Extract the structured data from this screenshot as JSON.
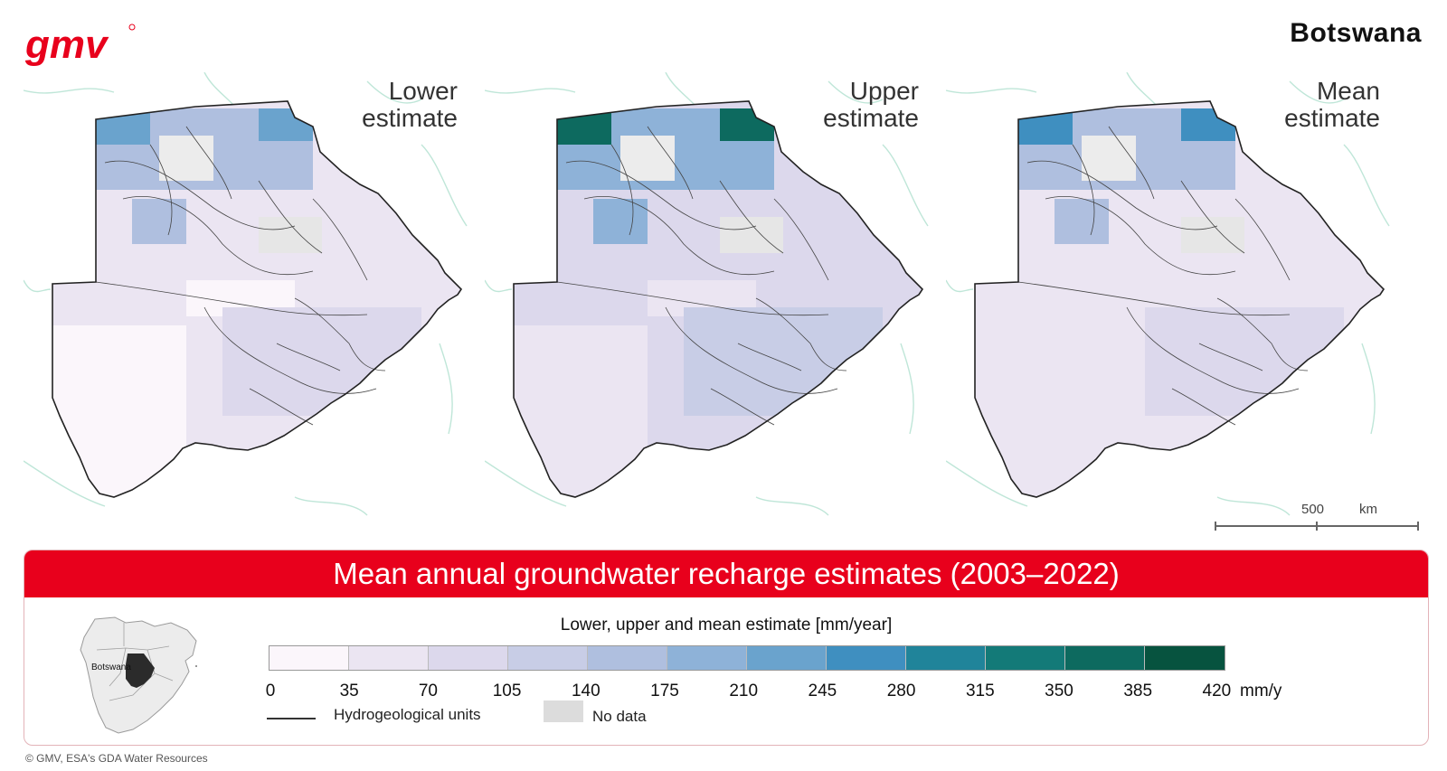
{
  "brand": {
    "logo_text": "gmv"
  },
  "country_title": "Botswana",
  "panels": [
    {
      "label_line1": "Lower",
      "label_line2": "estimate"
    },
    {
      "label_line1": "Upper",
      "label_line2": "estimate"
    },
    {
      "label_line1": "Mean",
      "label_line2": "estimate"
    }
  ],
  "scale_bar": {
    "value": "500",
    "unit": "km"
  },
  "legend": {
    "title": "Mean annual groundwater recharge estimates (2003–2022)",
    "subtitle": "Lower, upper and mean estimate [mm/year]",
    "ticks": [
      "0",
      "35",
      "70",
      "105",
      "140",
      "175",
      "210",
      "245",
      "280",
      "315",
      "350",
      "385",
      "420"
    ],
    "unit": "mm/y",
    "colors": [
      "#fbf6fb",
      "#ebe5f2",
      "#dcd8ec",
      "#c8cde6",
      "#afbfdf",
      "#8eb2d8",
      "#6aa3cd",
      "#3f8fc0",
      "#20849a",
      "#137a78",
      "#0d6a5f",
      "#07533f",
      "#023d2e"
    ],
    "line_item": "Hydrogeological units",
    "nodata_item": "No data",
    "inset_label": "Botswana"
  },
  "copyright": "© GMV, ESA's GDA Water Resources"
}
